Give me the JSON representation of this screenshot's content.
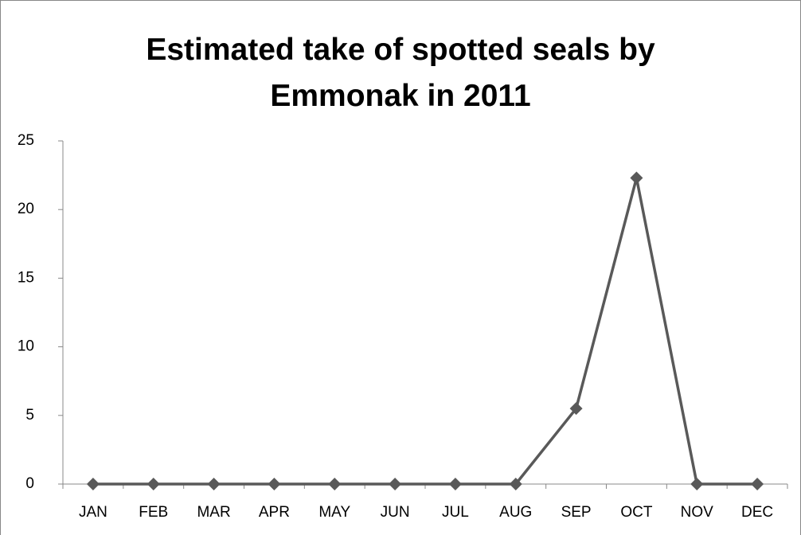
{
  "chart_data": {
    "type": "line",
    "title": "Estimated take of spotted seals by Emmonak in 2011",
    "categories": [
      "JAN",
      "FEB",
      "MAR",
      "APR",
      "MAY",
      "JUN",
      "JUL",
      "AUG",
      "SEP",
      "OCT",
      "NOV",
      "DEC"
    ],
    "series": [
      {
        "color": "#595959",
        "values": [
          0,
          0,
          0,
          0,
          0,
          0,
          0,
          0,
          5.5,
          22.3,
          0,
          0
        ]
      }
    ],
    "ylim": [
      0,
      25
    ],
    "yticks": [
      0,
      5,
      10,
      15,
      20,
      25
    ]
  }
}
